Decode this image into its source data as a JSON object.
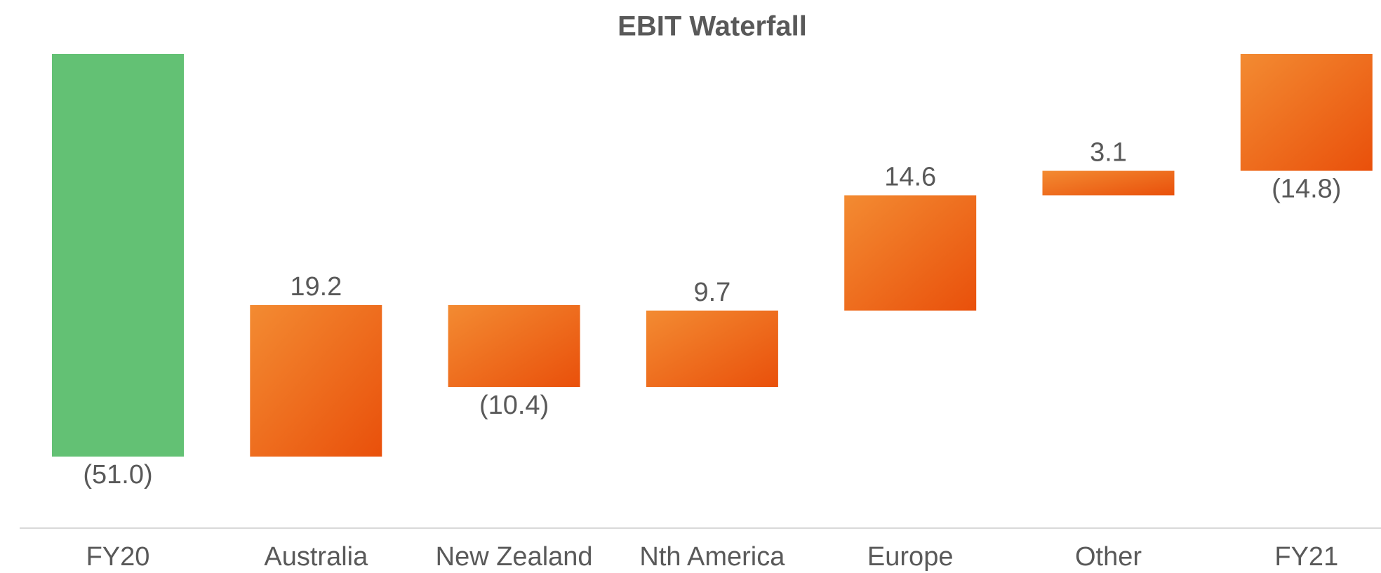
{
  "chart_data": {
    "type": "waterfall",
    "title": "EBIT Waterfall",
    "categories": [
      "FY20",
      "Australia",
      "New Zealand",
      "Nth America",
      "Europe",
      "Other",
      "FY21"
    ],
    "values": [
      -51.0,
      19.2,
      -10.4,
      9.7,
      14.6,
      3.1,
      -14.8
    ],
    "value_labels": [
      "(51.0)",
      "19.2",
      "(10.4)",
      "9.7",
      "14.6",
      "3.1",
      "(14.8)"
    ],
    "totals": [
      true,
      false,
      false,
      false,
      false,
      false,
      true
    ],
    "colors": [
      "#63c174",
      "#f07a24",
      "#f07a24",
      "#f07a24",
      "#f07a24",
      "#f07a24",
      "#f07a24"
    ]
  }
}
